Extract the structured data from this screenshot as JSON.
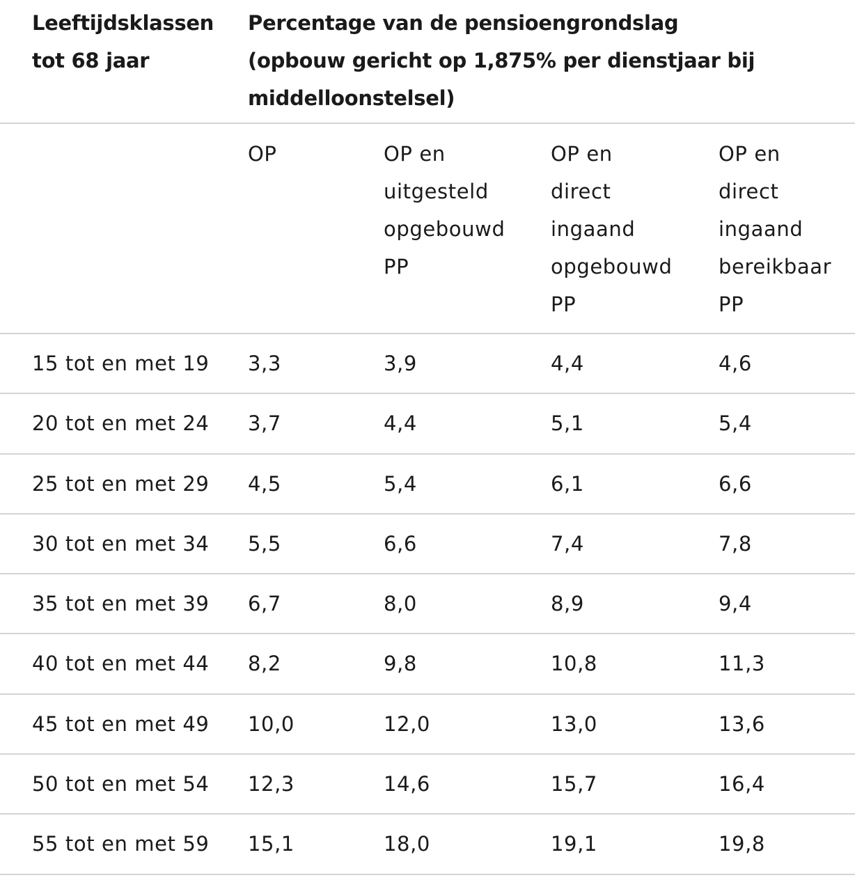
{
  "table": {
    "header": {
      "age_class_lines": [
        "Leeftijdsklassen",
        "tot 68 jaar"
      ],
      "percentage_lines": [
        "Percentage van de pensioengrondslag",
        "(opbouw gericht op 1,875% per dienstjaar bij",
        "middelloonstelsel)"
      ]
    },
    "subheaders": [
      {
        "lines": [
          "OP"
        ]
      },
      {
        "lines": [
          "OP en",
          "uitgesteld",
          "opgebouwd",
          "PP"
        ]
      },
      {
        "lines": [
          "OP en",
          "direct",
          "ingaand",
          "opgebouwd",
          "PP"
        ]
      },
      {
        "lines": [
          "OP en",
          "direct",
          "ingaand",
          "bereikbaar",
          "PP"
        ]
      }
    ],
    "rows": [
      {
        "age": "15 tot en met 19",
        "op": "3,3",
        "op_uitgesteld": "3,9",
        "op_direct_opgebouwd": "4,4",
        "op_direct_bereikbaar": "4,6"
      },
      {
        "age": "20 tot en met 24",
        "op": "3,7",
        "op_uitgesteld": "4,4",
        "op_direct_opgebouwd": "5,1",
        "op_direct_bereikbaar": "5,4"
      },
      {
        "age": "25 tot en met 29",
        "op": "4,5",
        "op_uitgesteld": "5,4",
        "op_direct_opgebouwd": "6,1",
        "op_direct_bereikbaar": "6,6"
      },
      {
        "age": "30 tot en met 34",
        "op": "5,5",
        "op_uitgesteld": "6,6",
        "op_direct_opgebouwd": "7,4",
        "op_direct_bereikbaar": "7,8"
      },
      {
        "age": "35 tot en met 39",
        "op": "6,7",
        "op_uitgesteld": "8,0",
        "op_direct_opgebouwd": "8,9",
        "op_direct_bereikbaar": "9,4"
      },
      {
        "age": "40 tot en met 44",
        "op": "8,2",
        "op_uitgesteld": "9,8",
        "op_direct_opgebouwd": "10,8",
        "op_direct_bereikbaar": "11,3"
      },
      {
        "age": "45 tot en met 49",
        "op": "10,0",
        "op_uitgesteld": "12,0",
        "op_direct_opgebouwd": "13,0",
        "op_direct_bereikbaar": "13,6"
      },
      {
        "age": "50 tot en met 54",
        "op": "12,3",
        "op_uitgesteld": "14,6",
        "op_direct_opgebouwd": "15,7",
        "op_direct_bereikbaar": "16,4"
      },
      {
        "age": "55 tot en met 59",
        "op": "15,1",
        "op_uitgesteld": "18,0",
        "op_direct_opgebouwd": "19,1",
        "op_direct_bereikbaar": "19,8"
      }
    ]
  }
}
